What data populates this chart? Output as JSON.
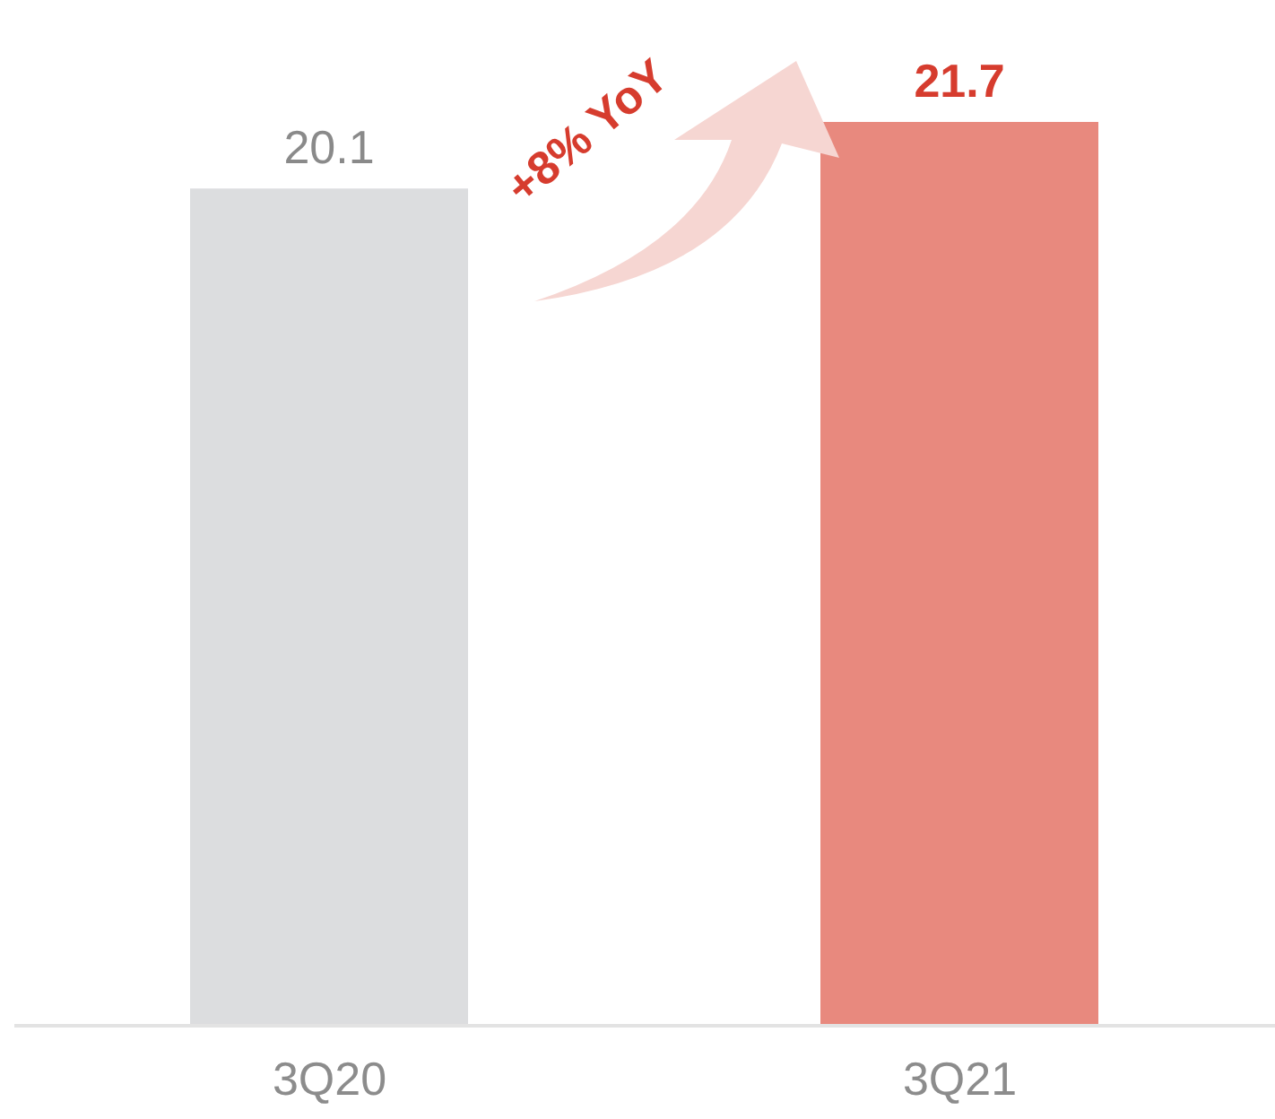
{
  "chart_data": {
    "type": "bar",
    "categories": [
      "3Q20",
      "3Q21"
    ],
    "values": [
      20.1,
      21.7
    ],
    "colors": [
      "#dcdddf",
      "#e8897e"
    ],
    "tick_labels": "x",
    "data_labels": true,
    "annotations": [
      "+8% YoY"
    ]
  }
}
